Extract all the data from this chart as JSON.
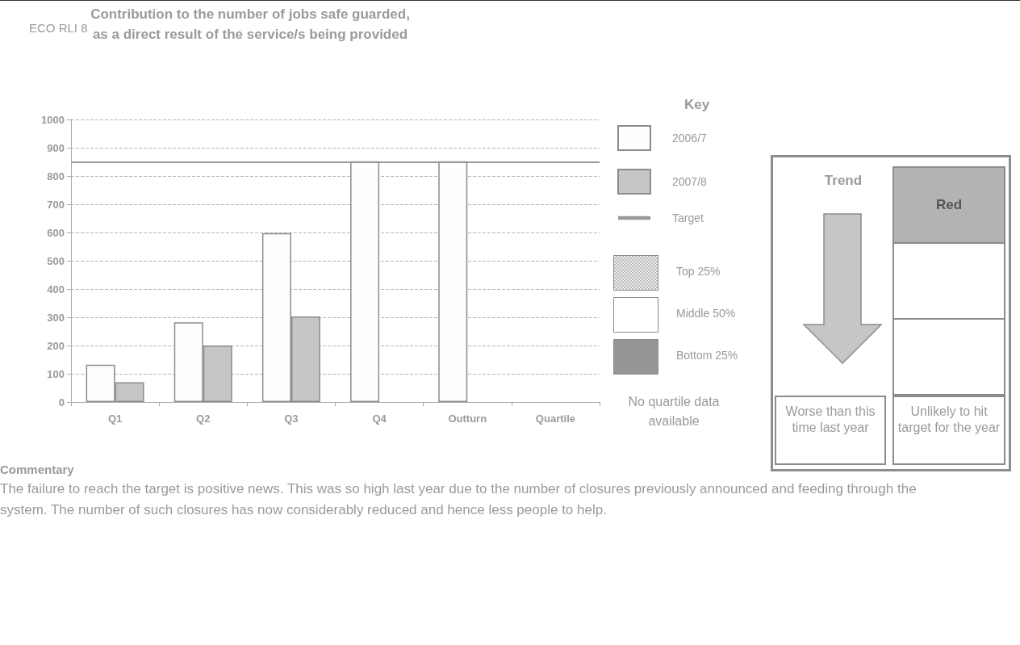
{
  "chart_data": {
    "type": "bar",
    "title": "Contribution to the number of jobs safe guarded, as a direct result of the service/s being provided",
    "categories": [
      "Q1",
      "Q2",
      "Q3",
      "Q4",
      "Outturn",
      "Quartile"
    ],
    "series": [
      {
        "name": "2006/7",
        "color": "#fdfdfd",
        "values": [
          132,
          282,
          598,
          852,
          852,
          null
        ]
      },
      {
        "name": "2007/8",
        "color": "#c6c6c6",
        "values": [
          70,
          200,
          303,
          null,
          null,
          null
        ]
      }
    ],
    "ref_lines": [
      {
        "axis": "y",
        "value": 850,
        "label": "Target",
        "color": "#999999",
        "line_style": "solid"
      }
    ],
    "ylim": [
      0,
      1000
    ],
    "yticks": [
      0,
      100,
      200,
      300,
      400,
      500,
      600,
      700,
      800,
      900,
      1000
    ],
    "grid": "y",
    "legend": "right",
    "legend_title": "Key",
    "annotations": [
      "ECO RLI 8",
      "Top 25%",
      "Middle 50%",
      "Bottom 25%",
      "No quartile data available",
      "Trend",
      "Red",
      "Worse than this time last year",
      "Unlikely to hit target for the year",
      "Commentary",
      "The failure to reach the target is positive news. This was so high last year due to the number of closures previously announced and feeding through the system. The number of such closures has now considerably reduced and hence less people to help."
    ]
  }
}
